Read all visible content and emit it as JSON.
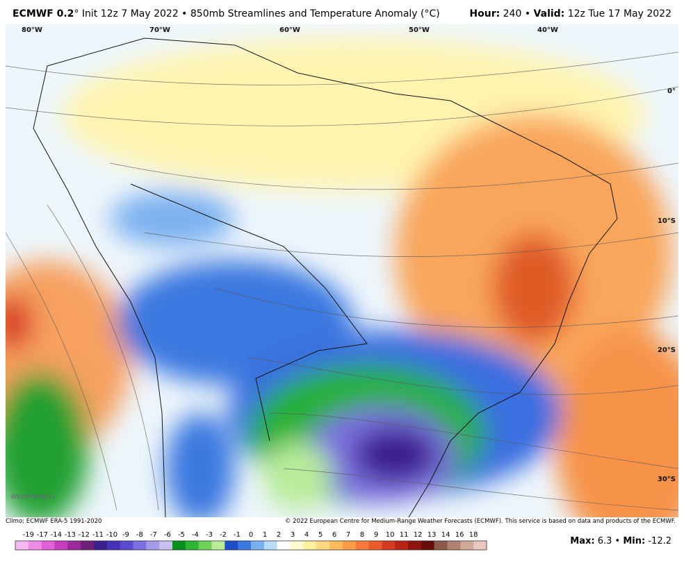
{
  "header": {
    "model": "ECMWF 0.2",
    "title_rest": "° Init 12z 7 May 2022 • 850mb Streamlines and Temperature Anomaly (°C)",
    "hour_label": "Hour:",
    "hour_value": " 240 • ",
    "valid_label": "Valid:",
    "valid_value": " 12z Tue 17 May 2022"
  },
  "map": {
    "lon_labels": [
      "80°W",
      "70°W",
      "60°W",
      "50°W",
      "40°W"
    ],
    "lat_labels": [
      "0°",
      "10°S",
      "20°S",
      "30°S"
    ],
    "logo": "WEATHERBELL"
  },
  "footer": {
    "climo": "Climo: ECMWF ERA-5 1991-2020",
    "copyright": "© 2022 European Centre for Medium-Range Weather Forecasts (ECMWF). This service is based on data and products of the ECMWF.",
    "max_label": "Max:",
    "max_value": 6.3,
    "separator": " • ",
    "min_label": "Min:",
    "min_value": -12.2
  },
  "colorbar": {
    "labels": [
      -19,
      -17,
      -14,
      -13,
      -12,
      -11,
      -10,
      -9,
      -8,
      -7,
      -6,
      -5,
      -4,
      -3,
      -2,
      -1,
      0,
      1,
      2,
      3,
      4,
      5,
      6,
      7,
      8,
      9,
      10,
      11,
      12,
      13,
      14,
      16,
      18
    ],
    "colors": [
      "#f5b8f0",
      "#ee8ce6",
      "#e25fd8",
      "#c83cc0",
      "#9b2a9a",
      "#6e1f78",
      "#3b1f8e",
      "#4532b8",
      "#5a4ad0",
      "#7b6ee0",
      "#a49ae8",
      "#c8c2f0",
      "#0a8f1e",
      "#2fb534",
      "#6fd15a",
      "#b8ec9a",
      "#1f4fc8",
      "#3b78e0",
      "#7ab0f0",
      "#b8dcf8",
      "#ffffff",
      "#fffbd0",
      "#fff0a0",
      "#ffd880",
      "#ffbb60",
      "#ff9a48",
      "#f77a38",
      "#ea5a2a",
      "#d63a20",
      "#b82418",
      "#8e1410",
      "#6a0c0c",
      "#8a5a4a",
      "#b08070",
      "#d0a898",
      "#e8c8c0"
    ]
  }
}
